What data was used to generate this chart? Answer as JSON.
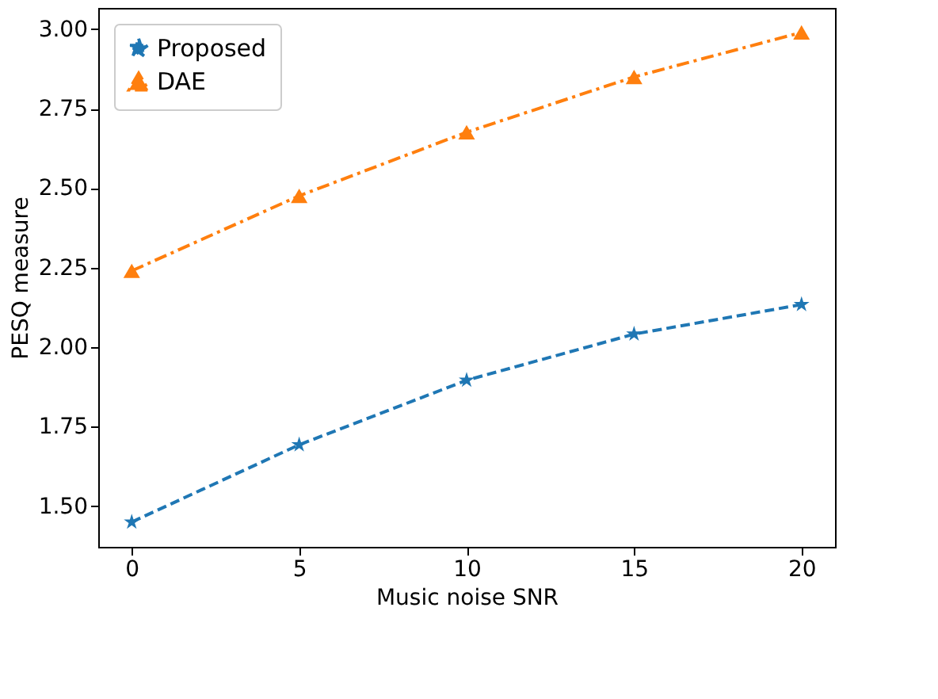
{
  "chart_data": {
    "type": "line",
    "xlabel": "Music noise SNR",
    "ylabel": "PESQ measure",
    "x": [
      0,
      5,
      10,
      15,
      20
    ],
    "series": [
      {
        "name": "Proposed",
        "color": "#1f77b4",
        "values": [
          1.45,
          1.693,
          1.896,
          2.041,
          2.134
        ],
        "marker": "star",
        "line_style": "dashed"
      },
      {
        "name": "DAE",
        "color": "#ff7f0e",
        "values": [
          2.24,
          2.476,
          2.676,
          2.85,
          2.99
        ],
        "marker": "triangle",
        "line_style": "dashdot"
      }
    ],
    "xlim": [
      -1,
      21
    ],
    "xticks": [
      0,
      5,
      10,
      15,
      20
    ],
    "ylim": [
      1.372,
      3.067
    ],
    "yticks": [
      {
        "value": 1.5,
        "label": "1.50"
      },
      1.75,
      {
        "value": 2.0,
        "label": "2.00"
      },
      2.25,
      {
        "value": 2.5,
        "label": "2.50"
      },
      2.75,
      {
        "value": 3.0,
        "label": "3.00"
      }
    ],
    "legend": "top left",
    "grid": false
  }
}
